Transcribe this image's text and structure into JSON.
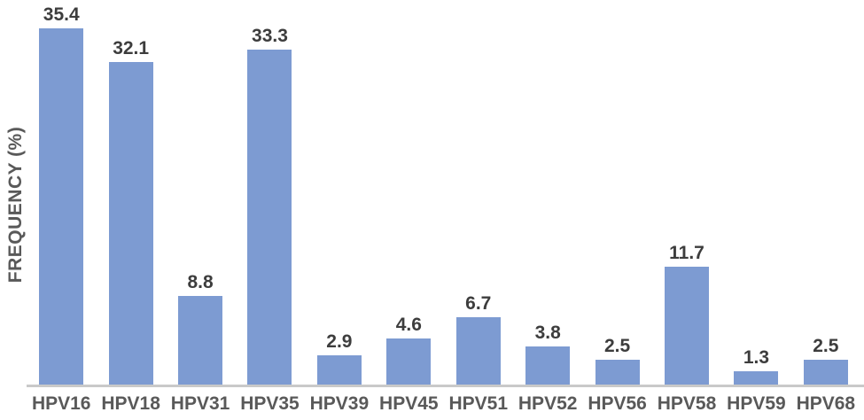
{
  "chart_data": {
    "type": "bar",
    "categories": [
      "HPV16",
      "HPV18",
      "HPV31",
      "HPV35",
      "HPV39",
      "HPV45",
      "HPV51",
      "HPV52",
      "HPV56",
      "HPV58",
      "HPV59",
      "HPV68"
    ],
    "values": [
      35.4,
      32.1,
      8.8,
      33.3,
      2.9,
      4.6,
      6.7,
      3.8,
      2.5,
      11.7,
      1.3,
      2.5
    ],
    "value_labels": [
      "35.4",
      "32.1",
      "8.8",
      "33.3",
      "2.9",
      "4.6",
      "6.7",
      "3.8",
      "2.5",
      "11.7",
      "1.3",
      "2.5"
    ],
    "title": "",
    "xlabel": "",
    "ylabel": "FREQUENCY (%)",
    "ylim": [
      0,
      38
    ],
    "grid": false,
    "legend": "none",
    "bar_color": "#7d9bd2",
    "value_label_color": "#3d3d3d",
    "axis_text_color": "#595959",
    "axis_line_color": "#c9c9c9"
  }
}
